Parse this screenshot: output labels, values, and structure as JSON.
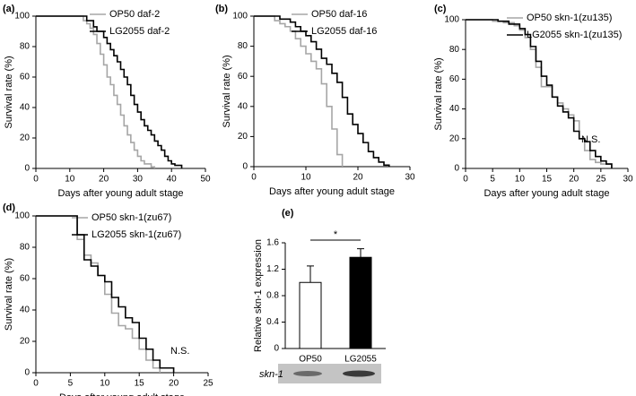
{
  "chart_data": [
    {
      "type": "line",
      "step": true,
      "panel_label": "(a)",
      "xlabel": "Days after young adult stage",
      "ylabel": "Survival rate (%)",
      "xlim": [
        0,
        50
      ],
      "xticks": [
        0,
        10,
        20,
        30,
        40,
        50
      ],
      "ylim": [
        0,
        100
      ],
      "yticks": [
        0,
        20,
        40,
        60,
        80,
        100
      ],
      "series": [
        {
          "name": "OP50 daf-2",
          "color": "#a6a6a6",
          "x": [
            0,
            12,
            14,
            15,
            16,
            17,
            18,
            19,
            20,
            21,
            22,
            23,
            24,
            25,
            26,
            27,
            28,
            29,
            30,
            31,
            32,
            34,
            35
          ],
          "values": [
            100,
            100,
            97,
            95,
            92,
            88,
            82,
            75,
            68,
            60,
            55,
            48,
            42,
            35,
            28,
            22,
            17,
            12,
            8,
            5,
            3,
            1,
            0
          ]
        },
        {
          "name": "LG2055 daf-2",
          "color": "#000000",
          "x": [
            0,
            13,
            15,
            17,
            18,
            20,
            21,
            22,
            23,
            24,
            25,
            26,
            27,
            28,
            29,
            30,
            31,
            32,
            33,
            34,
            35,
            36,
            37,
            38,
            39,
            40,
            41,
            43
          ],
          "values": [
            100,
            100,
            97,
            93,
            90,
            86,
            82,
            78,
            74,
            70,
            65,
            60,
            55,
            48,
            42,
            37,
            32,
            28,
            25,
            22,
            18,
            15,
            12,
            8,
            5,
            3,
            2,
            0
          ]
        }
      ]
    },
    {
      "type": "line",
      "step": true,
      "panel_label": "(b)",
      "xlabel": "Days after young adult stage",
      "ylabel": "Survival rate (%)",
      "xlim": [
        0,
        30
      ],
      "xticks": [
        0,
        10,
        20,
        30
      ],
      "ylim": [
        0,
        100
      ],
      "yticks": [
        0,
        20,
        40,
        60,
        80,
        100
      ],
      "series": [
        {
          "name": "OP50 daf-16",
          "color": "#a6a6a6",
          "x": [
            0,
            3,
            4,
            5,
            6,
            7,
            8,
            9,
            10,
            11,
            12,
            13,
            14,
            15,
            16,
            17
          ],
          "values": [
            100,
            100,
            97,
            95,
            93,
            90,
            85,
            80,
            75,
            70,
            65,
            55,
            40,
            25,
            8,
            0
          ]
        },
        {
          "name": "LG2055 daf-16",
          "color": "#000000",
          "x": [
            0,
            4,
            5,
            7,
            8,
            9,
            10,
            11,
            12,
            13,
            14,
            15,
            16,
            17,
            18,
            19,
            20,
            21,
            22,
            23,
            24,
            25,
            26
          ],
          "values": [
            100,
            100,
            98,
            96,
            93,
            90,
            87,
            83,
            78,
            72,
            68,
            62,
            56,
            46,
            35,
            28,
            22,
            16,
            10,
            6,
            3,
            1,
            0
          ]
        }
      ]
    },
    {
      "type": "line",
      "step": true,
      "panel_label": "(c)",
      "xlabel": "Days after young adult stage",
      "ylabel": "Survival rate (%)",
      "annotation": "N.S.",
      "xlim": [
        0,
        30
      ],
      "xticks": [
        0,
        5,
        10,
        15,
        20,
        25,
        30
      ],
      "ylim": [
        0,
        100
      ],
      "yticks": [
        0,
        20,
        40,
        60,
        80,
        100
      ],
      "series": [
        {
          "name": "OP50 skn-1(zu135)",
          "color": "#a6a6a6",
          "x": [
            0,
            3,
            5,
            7,
            9,
            10,
            11,
            12,
            13,
            14,
            15,
            16,
            17,
            18,
            19,
            20,
            21,
            22,
            23,
            24,
            25,
            27
          ],
          "values": [
            100,
            100,
            99,
            98,
            96,
            93,
            88,
            80,
            68,
            55,
            55,
            48,
            44,
            40,
            36,
            32,
            20,
            12,
            6,
            4,
            3,
            0
          ]
        },
        {
          "name": "LG2055 skn-1(zu135)",
          "color": "#000000",
          "x": [
            0,
            4,
            6,
            8,
            10,
            11,
            12,
            13,
            14,
            15,
            16,
            17,
            18,
            19,
            20,
            21,
            22,
            23,
            24,
            25,
            26,
            27
          ],
          "values": [
            100,
            100,
            99,
            97,
            94,
            90,
            82,
            72,
            62,
            56,
            48,
            42,
            38,
            34,
            25,
            20,
            18,
            12,
            8,
            5,
            3,
            0
          ]
        }
      ]
    },
    {
      "type": "line",
      "step": true,
      "panel_label": "(d)",
      "xlabel": "Days after young adult stage",
      "ylabel": "Survival rate (%)",
      "annotation": "N.S.",
      "xlim": [
        0,
        25
      ],
      "xticks": [
        0,
        5,
        10,
        15,
        20,
        25
      ],
      "ylim": [
        0,
        100
      ],
      "yticks": [
        0,
        20,
        40,
        60,
        80,
        100
      ],
      "series": [
        {
          "name": "OP50 skn-1(zu67)",
          "color": "#a6a6a6",
          "x": [
            0,
            5,
            6,
            7,
            8,
            9,
            10,
            11,
            12,
            13,
            14,
            15,
            16,
            17,
            18
          ],
          "values": [
            100,
            100,
            85,
            75,
            70,
            62,
            50,
            38,
            30,
            28,
            22,
            15,
            8,
            3,
            0
          ]
        },
        {
          "name": "LG2055 skn-1(zu67)",
          "color": "#000000",
          "x": [
            0,
            5,
            6,
            7,
            8,
            9,
            10,
            11,
            12,
            13,
            14,
            15,
            16,
            17,
            18,
            20
          ],
          "values": [
            100,
            100,
            88,
            72,
            68,
            62,
            58,
            48,
            42,
            35,
            32,
            22,
            15,
            8,
            3,
            0
          ]
        }
      ]
    },
    {
      "type": "bar",
      "panel_label": "(e)",
      "ylabel": "Relative skn-1 expression",
      "annotation": "*",
      "blot_label": "skn-1",
      "categories": [
        "OP50",
        "LG2055"
      ],
      "values": [
        1.0,
        1.38
      ],
      "errors": [
        0.25,
        0.13
      ],
      "colors": [
        "#ffffff",
        "#000000"
      ],
      "ylim": [
        0,
        1.6
      ],
      "yticks": [
        0,
        0.4,
        0.8,
        1.2,
        1.6
      ]
    }
  ]
}
